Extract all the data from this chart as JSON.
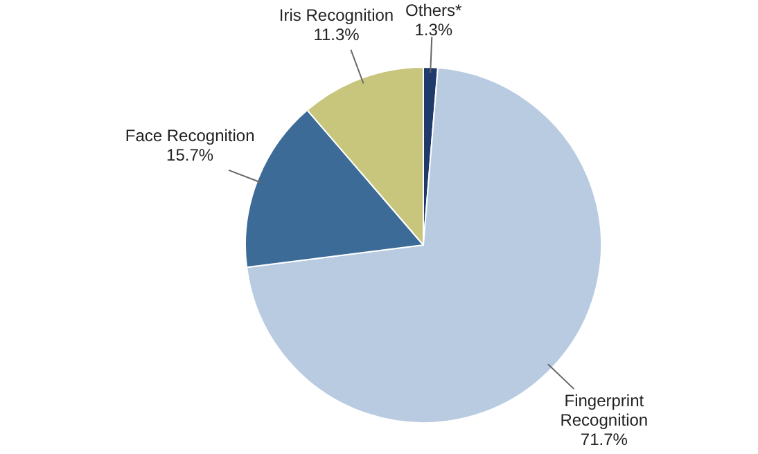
{
  "chart_data": {
    "type": "pie",
    "categories": [
      "Others*",
      "Fingerprint Recognition",
      "Face Recognition",
      "Iris Recognition"
    ],
    "values": [
      1.3,
      71.7,
      15.7,
      11.3
    ],
    "value_labels": [
      "1.3%",
      "71.7%",
      "15.7%",
      "11.3%"
    ],
    "colors": [
      "#1f3a6b",
      "#b8cbe0",
      "#3d6b98",
      "#c8c57c"
    ],
    "legend": false
  }
}
